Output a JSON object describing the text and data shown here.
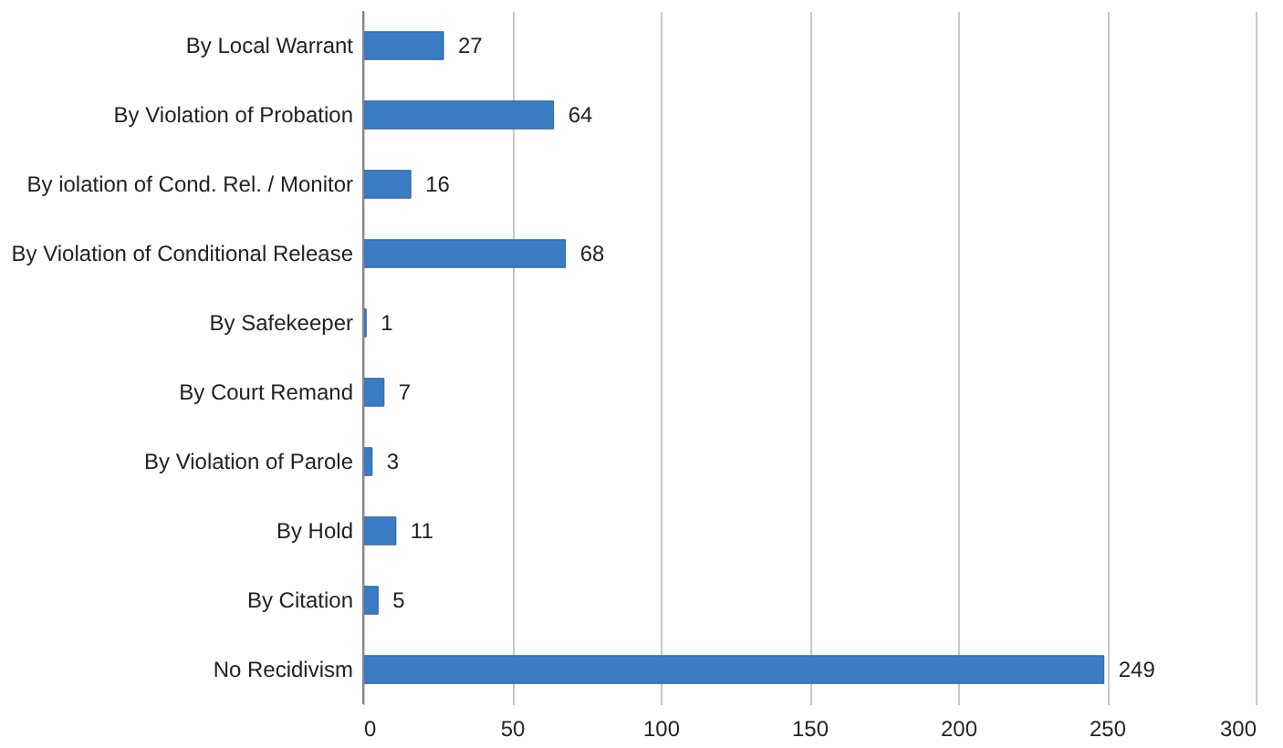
{
  "chart_data": {
    "type": "bar",
    "orientation": "horizontal",
    "categories": [
      "By Local Warrant",
      "By Violation of Probation",
      "By iolation of Cond. Rel. / Monitor",
      "By Violation of Conditional Release",
      "By Safekeeper",
      "By Court Remand",
      "By Violation of Parole",
      "By Hold",
      "By Citation",
      "No Recidivism"
    ],
    "values": [
      27,
      64,
      16,
      68,
      1,
      7,
      3,
      11,
      5,
      249
    ],
    "color": "#3a7cc4",
    "xlim": [
      0,
      300
    ],
    "xticks": [
      0,
      50,
      100,
      150,
      200,
      250,
      300
    ],
    "grid": "x",
    "data_labels": true
  }
}
